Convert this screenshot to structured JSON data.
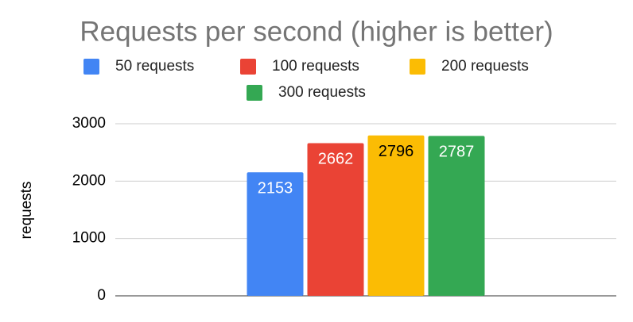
{
  "chart_data": {
    "type": "bar",
    "title": "Requests per second (higher is better)",
    "y_label": "requests",
    "categories": [
      null
    ],
    "series": [
      {
        "name": "50 requests",
        "color": "#4285f4",
        "label_color": "#ffffff",
        "values": [
          2153
        ]
      },
      {
        "name": "100 requests",
        "color": "#ea4335",
        "label_color": "#ffffff",
        "values": [
          2662
        ]
      },
      {
        "name": "200 requests",
        "color": "#fbbc04",
        "label_color": "#000000",
        "values": [
          2796
        ]
      },
      {
        "name": "300 requests",
        "color": "#34a853",
        "label_color": "#ffffff",
        "values": [
          2787
        ]
      }
    ],
    "ylim": [
      0,
      3000
    ],
    "yticks": [
      0,
      1000,
      2000,
      3000
    ],
    "grid": true
  }
}
